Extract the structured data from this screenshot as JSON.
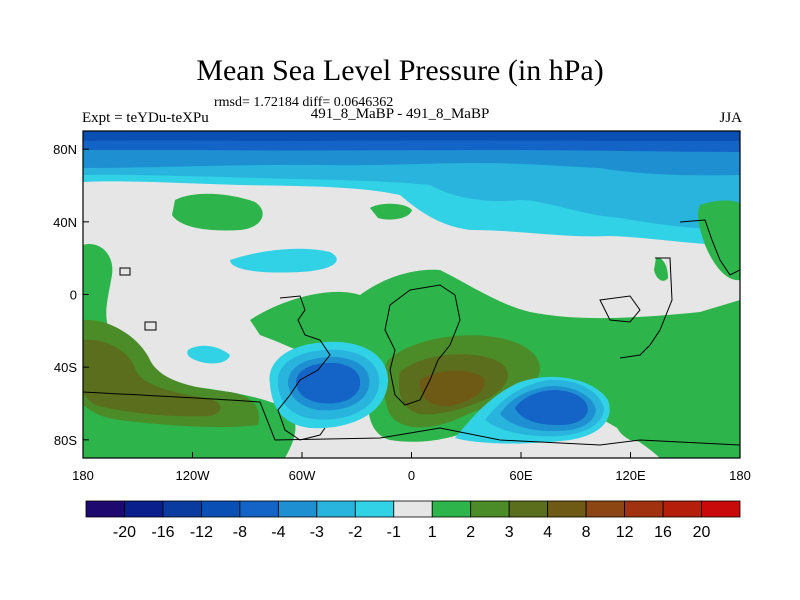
{
  "chart_data": {
    "type": "heatmap",
    "title": "Mean Sea Level Pressure (in hPa)",
    "stats_text": "rmsd= 1.72184  diff= 0.0646362",
    "left_label": "Expt = teYDu-teXPu",
    "center_label": "491_8_MaBP - 491_8_MaBP",
    "season": "JJA",
    "x_ticks": [
      "180",
      "120W",
      "60W",
      "0",
      "60E",
      "120E",
      "180"
    ],
    "y_ticks": [
      "80N",
      "40N",
      "0",
      "40S",
      "80S"
    ],
    "colorbar": {
      "labels": [
        "-20",
        "-16",
        "-12",
        "-8",
        "-4",
        "-3",
        "-2",
        "-1",
        "1",
        "2",
        "3",
        "4",
        "8",
        "12",
        "16",
        "20"
      ],
      "colors": [
        "#1e0a6e",
        "#0a1e8c",
        "#0a3ca0",
        "#0a50b4",
        "#1464c8",
        "#1e90d2",
        "#28b4dc",
        "#32d2e6",
        "#e6e6e6",
        "#2db44b",
        "#4b8c28",
        "#5a6e1e",
        "#6e5a14",
        "#8c4614",
        "#a0320f",
        "#b41e0a",
        "#c80a0a"
      ]
    },
    "fill_colors": {
      "background": "#e6e6e6",
      "neg4": "#1464c8",
      "neg3": "#1e90d2",
      "neg2": "#28b4dc",
      "neg1": "#32d2e6",
      "pos2": "#2db44b",
      "pos3": "#4b8c28",
      "pos4": "#5a6e1e",
      "pos8": "#6e5a14",
      "deep_blue": "#0a50b4"
    }
  }
}
